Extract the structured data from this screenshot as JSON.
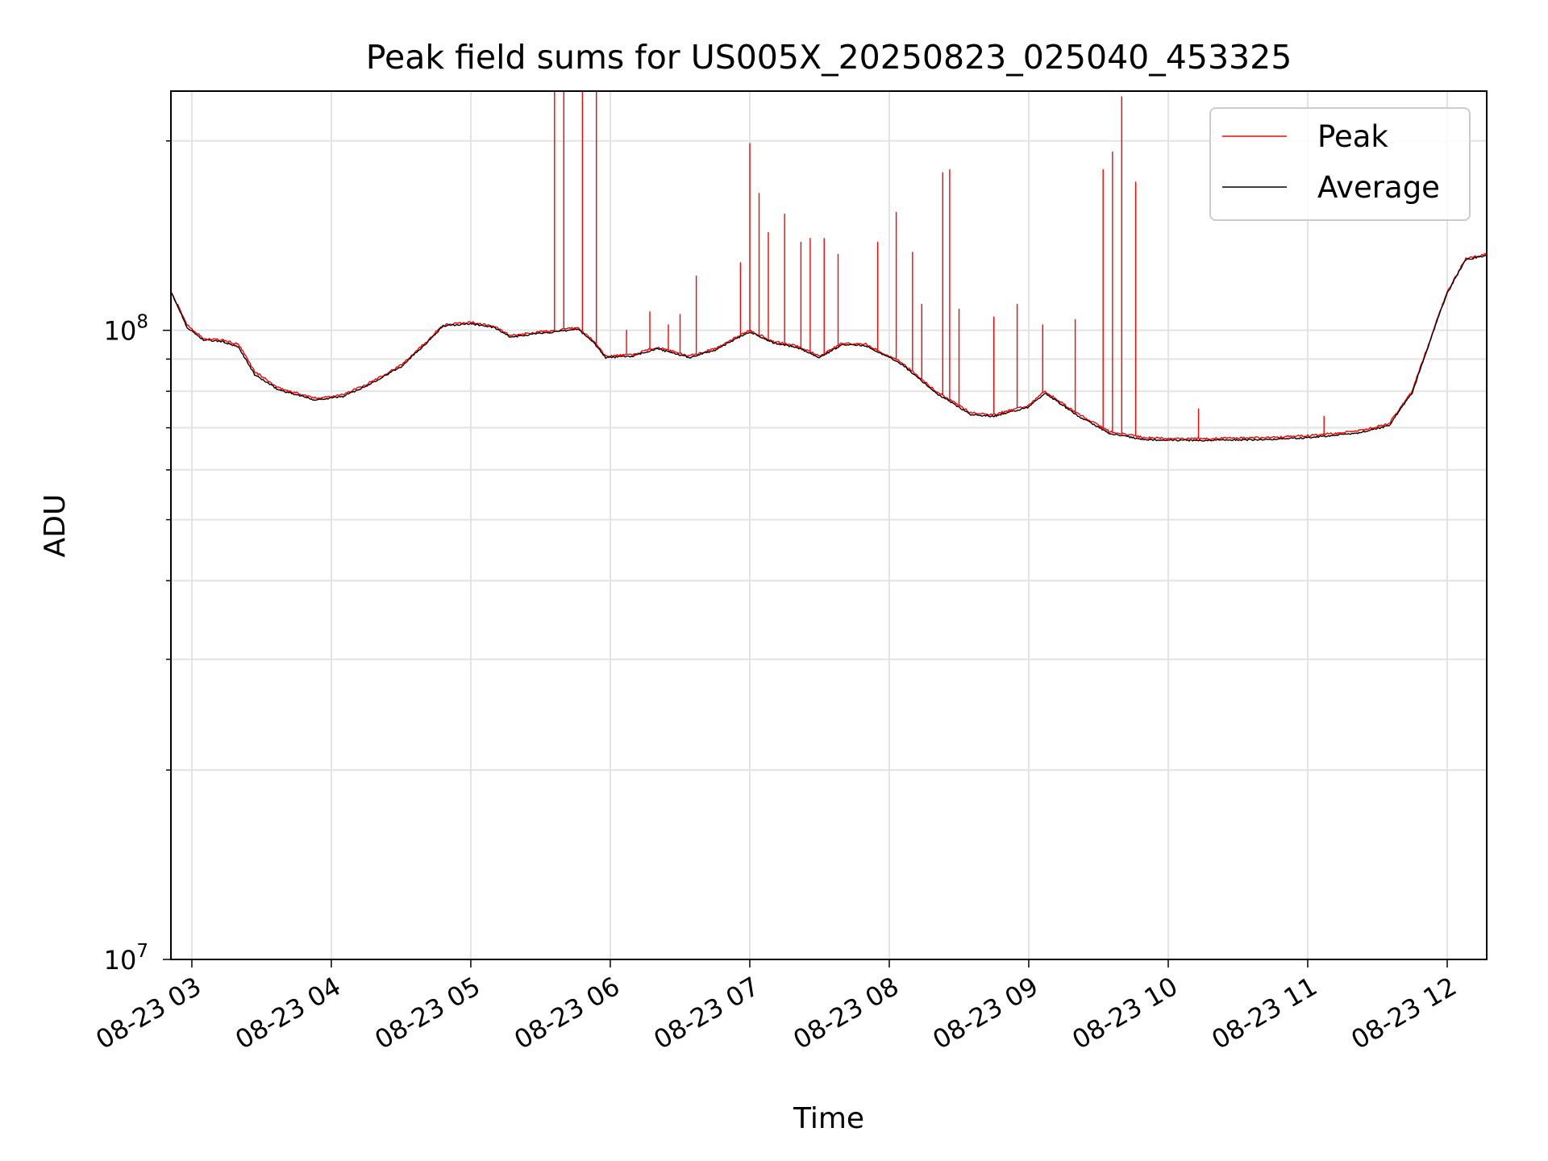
{
  "chart_data": {
    "type": "line",
    "title": "Peak field sums for US005X_20250823_025040_453325",
    "xlabel": "Time",
    "ylabel": "ADU",
    "yscale": "log",
    "xlim": [
      "08-23 02:51",
      "08-23 12:17"
    ],
    "ylim": [
      10000000,
      240000000
    ],
    "x_ticks": [
      "08-23 03",
      "08-23 04",
      "08-23 05",
      "08-23 06",
      "08-23 07",
      "08-23 08",
      "08-23 09",
      "08-23 10",
      "08-23 11",
      "08-23 12"
    ],
    "y_ticks": [
      {
        "value": 10000000,
        "base": "10",
        "exp": "7"
      },
      {
        "value": 100000000,
        "base": "10",
        "exp": "8"
      }
    ],
    "grid": true,
    "legend_position": "upper right",
    "series": [
      {
        "name": "Peak",
        "color": "#ff0000",
        "baseline": [
          [
            "08-23 02:51",
            115000000
          ],
          [
            "08-23 02:58",
            102000000
          ],
          [
            "08-23 03:05",
            97000000
          ],
          [
            "08-23 03:13",
            96500000
          ],
          [
            "08-23 03:20",
            95000000
          ],
          [
            "08-23 03:27",
            86000000
          ],
          [
            "08-23 03:37",
            81000000
          ],
          [
            "08-23 03:45",
            79500000
          ],
          [
            "08-23 03:53",
            78000000
          ],
          [
            "08-23 04:05",
            79000000
          ],
          [
            "08-23 04:15",
            82000000
          ],
          [
            "08-23 04:30",
            88000000
          ],
          [
            "08-23 04:41",
            96000000
          ],
          [
            "08-23 04:48",
            102000000
          ],
          [
            "08-23 05:00",
            103000000
          ],
          [
            "08-23 05:10",
            101500000
          ],
          [
            "08-23 05:17",
            98000000
          ],
          [
            "08-23 05:30",
            99500000
          ],
          [
            "08-23 05:38",
            100000000
          ],
          [
            "08-23 05:46",
            101000000
          ],
          [
            "08-23 05:53",
            96000000
          ],
          [
            "08-23 05:58",
            91000000
          ],
          [
            "08-23 06:10",
            91500000
          ],
          [
            "08-23 06:20",
            94000000
          ],
          [
            "08-23 06:34",
            91000000
          ],
          [
            "08-23 06:45",
            93500000
          ],
          [
            "08-23 07:00",
            100000000
          ],
          [
            "08-23 07:10",
            96000000
          ],
          [
            "08-23 07:20",
            94500000
          ],
          [
            "08-23 07:30",
            91000000
          ],
          [
            "08-23 07:40",
            95500000
          ],
          [
            "08-23 07:50",
            95000000
          ],
          [
            "08-23 08:05",
            89000000
          ],
          [
            "08-23 08:20",
            80000000
          ],
          [
            "08-23 08:35",
            74000000
          ],
          [
            "08-23 08:45",
            73500000
          ],
          [
            "08-23 09:00",
            76000000
          ],
          [
            "08-23 09:07",
            80000000
          ],
          [
            "08-23 09:20",
            74000000
          ],
          [
            "08-23 09:35",
            69000000
          ],
          [
            "08-23 09:50",
            67500000
          ],
          [
            "08-23 10:10",
            67200000
          ],
          [
            "08-23 10:40",
            67500000
          ],
          [
            "08-23 11:00",
            68000000
          ],
          [
            "08-23 11:20",
            69000000
          ],
          [
            "08-23 11:35",
            71000000
          ],
          [
            "08-23 11:45",
            80000000
          ],
          [
            "08-23 11:52",
            95000000
          ],
          [
            "08-23 12:00",
            115000000
          ],
          [
            "08-23 12:08",
            130000000
          ],
          [
            "08-23 12:17",
            132000000
          ]
        ],
        "spikes": [
          [
            "08-23 05:36",
            240000000
          ],
          [
            "08-23 05:40",
            240000000
          ],
          [
            "08-23 05:48",
            240000000
          ],
          [
            "08-23 05:54",
            240000000
          ],
          [
            "08-23 06:07",
            100000000
          ],
          [
            "08-23 06:17",
            107000000
          ],
          [
            "08-23 06:25",
            102000000
          ],
          [
            "08-23 06:30",
            106000000
          ],
          [
            "08-23 06:37",
            122000000
          ],
          [
            "08-23 06:56",
            128000000
          ],
          [
            "08-23 07:00",
            198000000
          ],
          [
            "08-23 07:04",
            165000000
          ],
          [
            "08-23 07:08",
            143000000
          ],
          [
            "08-23 07:15",
            153000000
          ],
          [
            "08-23 07:22",
            138000000
          ],
          [
            "08-23 07:26",
            140000000
          ],
          [
            "08-23 07:32",
            140000000
          ],
          [
            "08-23 07:38",
            132000000
          ],
          [
            "08-23 07:55",
            138000000
          ],
          [
            "08-23 08:03",
            154000000
          ],
          [
            "08-23 08:10",
            133000000
          ],
          [
            "08-23 08:14",
            110000000
          ],
          [
            "08-23 08:23",
            178000000
          ],
          [
            "08-23 08:26",
            180000000
          ],
          [
            "08-23 08:30",
            108000000
          ],
          [
            "08-23 08:45",
            105000000
          ],
          [
            "08-23 08:55",
            110000000
          ],
          [
            "08-23 09:06",
            102000000
          ],
          [
            "08-23 09:20",
            104000000
          ],
          [
            "08-23 09:32",
            180000000
          ],
          [
            "08-23 09:36",
            192000000
          ],
          [
            "08-23 09:40",
            235000000
          ],
          [
            "08-23 09:46",
            172000000
          ],
          [
            "08-23 10:13",
            75000000
          ],
          [
            "08-23 11:07",
            73000000
          ]
        ]
      },
      {
        "name": "Average",
        "color": "#000000",
        "values": [
          [
            "08-23 02:51",
            115000000
          ],
          [
            "08-23 02:58",
            101000000
          ],
          [
            "08-23 03:05",
            96500000
          ],
          [
            "08-23 03:13",
            96000000
          ],
          [
            "08-23 03:20",
            94000000
          ],
          [
            "08-23 03:27",
            85000000
          ],
          [
            "08-23 03:37",
            80500000
          ],
          [
            "08-23 03:45",
            79000000
          ],
          [
            "08-23 03:53",
            77500000
          ],
          [
            "08-23 04:05",
            78500000
          ],
          [
            "08-23 04:15",
            81500000
          ],
          [
            "08-23 04:30",
            87500000
          ],
          [
            "08-23 04:41",
            95500000
          ],
          [
            "08-23 04:48",
            101500000
          ],
          [
            "08-23 05:00",
            102500000
          ],
          [
            "08-23 05:10",
            101000000
          ],
          [
            "08-23 05:17",
            97500000
          ],
          [
            "08-23 05:30",
            99000000
          ],
          [
            "08-23 05:38",
            99500000
          ],
          [
            "08-23 05:46",
            100500000
          ],
          [
            "08-23 05:53",
            95500000
          ],
          [
            "08-23 05:58",
            90500000
          ],
          [
            "08-23 06:10",
            91000000
          ],
          [
            "08-23 06:20",
            93500000
          ],
          [
            "08-23 06:34",
            90500000
          ],
          [
            "08-23 06:45",
            93000000
          ],
          [
            "08-23 07:00",
            99500000
          ],
          [
            "08-23 07:10",
            95500000
          ],
          [
            "08-23 07:20",
            94000000
          ],
          [
            "08-23 07:30",
            90500000
          ],
          [
            "08-23 07:40",
            95000000
          ],
          [
            "08-23 07:50",
            94500000
          ],
          [
            "08-23 08:05",
            88500000
          ],
          [
            "08-23 08:20",
            79500000
          ],
          [
            "08-23 08:35",
            73500000
          ],
          [
            "08-23 08:45",
            73000000
          ],
          [
            "08-23 09:00",
            75500000
          ],
          [
            "08-23 09:07",
            79500000
          ],
          [
            "08-23 09:20",
            73500000
          ],
          [
            "08-23 09:35",
            68500000
          ],
          [
            "08-23 09:50",
            67000000
          ],
          [
            "08-23 10:10",
            66800000
          ],
          [
            "08-23 10:40",
            67000000
          ],
          [
            "08-23 11:00",
            67500000
          ],
          [
            "08-23 11:20",
            68500000
          ],
          [
            "08-23 11:35",
            70500000
          ],
          [
            "08-23 11:45",
            79500000
          ],
          [
            "08-23 11:52",
            94500000
          ],
          [
            "08-23 12:00",
            114500000
          ],
          [
            "08-23 12:08",
            129500000
          ],
          [
            "08-23 12:17",
            131500000
          ]
        ]
      }
    ]
  }
}
